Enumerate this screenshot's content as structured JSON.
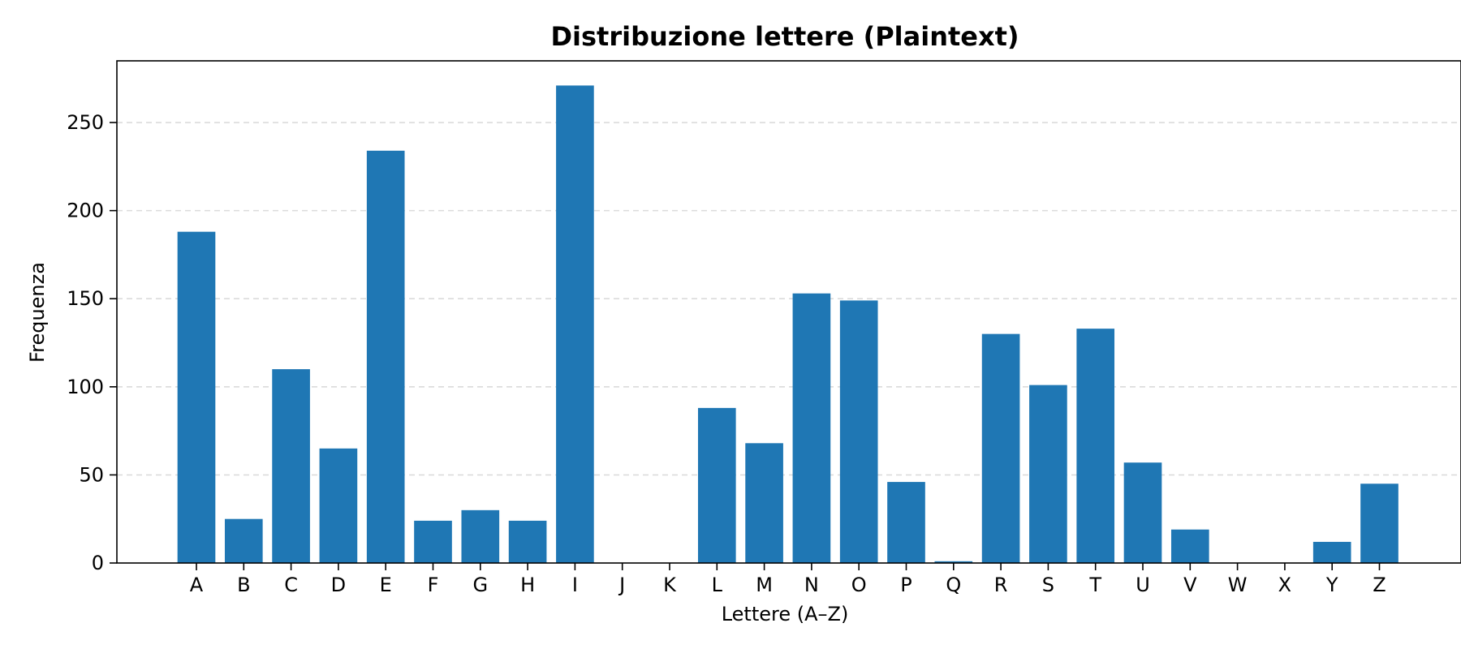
{
  "chart_data": {
    "type": "bar",
    "title": "Distribuzione lettere (Plaintext)",
    "xlabel": "Lettere (A–Z)",
    "ylabel": "Frequenza",
    "categories": [
      "A",
      "B",
      "C",
      "D",
      "E",
      "F",
      "G",
      "H",
      "I",
      "J",
      "K",
      "L",
      "M",
      "N",
      "O",
      "P",
      "Q",
      "R",
      "S",
      "T",
      "U",
      "V",
      "W",
      "X",
      "Y",
      "Z"
    ],
    "values": [
      188,
      25,
      110,
      65,
      234,
      24,
      30,
      24,
      271,
      0,
      0,
      88,
      68,
      153,
      149,
      46,
      1,
      130,
      101,
      133,
      57,
      19,
      0,
      0,
      12,
      45
    ],
    "ylim": [
      0,
      285
    ],
    "yticks": [
      0,
      50,
      100,
      150,
      200,
      250
    ],
    "grid": "y dashed",
    "bar_color": "#1f77b4"
  }
}
